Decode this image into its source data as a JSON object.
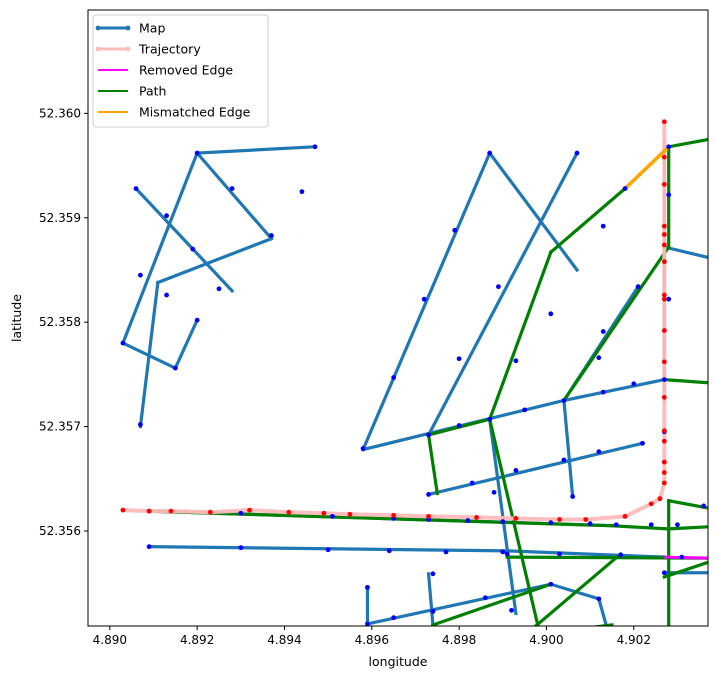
{
  "chart_data": {
    "type": "line",
    "xlabel": "longitude",
    "ylabel": "latitude",
    "xlim": [
      4.8895,
      4.9037
    ],
    "ylim": [
      52.35509,
      52.36099
    ],
    "xticks": [
      "4.890",
      "4.892",
      "4.894",
      "4.896",
      "4.898",
      "4.900",
      "4.902"
    ],
    "xtick_values": [
      4.89,
      4.892,
      4.894,
      4.896,
      4.898,
      4.9,
      4.902
    ],
    "yticks": [
      "52.356",
      "52.357",
      "52.358",
      "52.359",
      "52.360"
    ],
    "ytick_values": [
      52.356,
      52.357,
      52.358,
      52.359,
      52.36
    ],
    "legend_position": "upper left",
    "legend": [
      {
        "label": "Map",
        "color": "#1f77b4",
        "style": "line-marker"
      },
      {
        "label": "Trajectory",
        "color": "#ffbbbb",
        "style": "line-marker"
      },
      {
        "label": "Removed Edge",
        "color": "#ff00ff",
        "style": "line"
      },
      {
        "label": "Path",
        "color": "#008000",
        "style": "line"
      },
      {
        "label": "Mismatched Edge",
        "color": "#ffa500",
        "style": "line"
      }
    ],
    "map_edges": [
      [
        [
          4.892,
          52.35962
        ],
        [
          4.8903,
          52.3578
        ]
      ],
      [
        [
          4.892,
          52.35962
        ],
        [
          4.8947,
          52.35968
        ]
      ],
      [
        [
          4.892,
          52.35962
        ],
        [
          4.8937,
          52.3588
        ]
      ],
      [
        [
          4.8906,
          52.35928
        ],
        [
          4.8928,
          52.3583
        ]
      ],
      [
        [
          4.8907,
          52.357
        ],
        [
          4.8911,
          52.35838
        ]
      ],
      [
        [
          4.8911,
          52.35838
        ],
        [
          4.8937,
          52.3588
        ]
      ],
      [
        [
          4.8903,
          52.3578
        ],
        [
          4.8915,
          52.35756
        ]
      ],
      [
        [
          4.8915,
          52.35756
        ],
        [
          4.892,
          52.35802
        ]
      ],
      [
        [
          4.8958,
          52.35678
        ],
        [
          4.8987,
          52.35962
        ]
      ],
      [
        [
          4.8987,
          52.35962
        ],
        [
          4.9007,
          52.3585
        ]
      ],
      [
        [
          4.8958,
          52.35678
        ],
        [
          4.9004,
          52.35725
        ]
      ],
      [
        [
          4.9004,
          52.35725
        ],
        [
          4.9027,
          52.35745
        ]
      ],
      [
        [
          4.8973,
          52.35692
        ],
        [
          4.9007,
          52.35962
        ]
      ],
      [
        [
          4.8973,
          52.35635
        ],
        [
          4.9022,
          52.35684
        ]
      ],
      [
        [
          4.9004,
          52.35725
        ],
        [
          4.9006,
          52.35633
        ]
      ],
      [
        [
          4.8987,
          52.35707
        ],
        [
          4.8993,
          52.35521
        ]
      ],
      [
        [
          4.9004,
          52.35725
        ],
        [
          4.9021,
          52.35834
        ]
      ],
      [
        [
          4.9027,
          52.35725
        ],
        [
          4.9027,
          52.35972
        ]
      ],
      [
        [
          4.9027,
          52.35872
        ],
        [
          4.9037,
          52.35862
        ]
      ],
      [
        [
          4.8909,
          52.35585
        ],
        [
          4.8991,
          52.35581
        ]
      ],
      [
        [
          4.8991,
          52.35581
        ],
        [
          4.9027,
          52.35575
        ]
      ],
      [
        [
          4.8909,
          52.35619
        ],
        [
          4.9016,
          52.35605
        ]
      ],
      [
        [
          4.8973,
          52.35559
        ],
        [
          4.8974,
          52.3551
        ]
      ],
      [
        [
          4.8959,
          52.35546
        ],
        [
          4.8959,
          52.3551
        ]
      ],
      [
        [
          4.8959,
          52.35511
        ],
        [
          4.9001,
          52.35549
        ]
      ],
      [
        [
          4.9001,
          52.35549
        ],
        [
          4.9012,
          52.35535
        ]
      ],
      [
        [
          4.9012,
          52.35535
        ],
        [
          4.9014,
          52.35505
        ]
      ],
      [
        [
          4.9027,
          52.3556
        ],
        [
          4.9037,
          52.3556
        ]
      ]
    ],
    "map_nodes": [
      [
        4.892,
        52.35962
      ],
      [
        4.8906,
        52.35928
      ],
      [
        4.8913,
        52.35902
      ],
      [
        4.8928,
        52.35928
      ],
      [
        4.8944,
        52.35925
      ],
      [
        4.8947,
        52.35968
      ],
      [
        4.8937,
        52.35883
      ],
      [
        4.8919,
        52.3587
      ],
      [
        4.8907,
        52.35845
      ],
      [
        4.8913,
        52.35826
      ],
      [
        4.8925,
        52.35832
      ],
      [
        4.892,
        52.35802
      ],
      [
        4.8903,
        52.3578
      ],
      [
        4.8915,
        52.35756
      ],
      [
        4.8907,
        52.35702
      ],
      [
        4.8987,
        52.35962
      ],
      [
        4.9007,
        52.35962
      ],
      [
        4.8979,
        52.35888
      ],
      [
        4.8989,
        52.35834
      ],
      [
        4.8972,
        52.35822
      ],
      [
        4.898,
        52.35765
      ],
      [
        4.8965,
        52.35747
      ],
      [
        4.8958,
        52.35679
      ],
      [
        4.8973,
        52.35692
      ],
      [
        4.898,
        52.35701
      ],
      [
        4.8987,
        52.35707
      ],
      [
        4.8995,
        52.35716
      ],
      [
        4.9004,
        52.35725
      ],
      [
        4.9013,
        52.35733
      ],
      [
        4.902,
        52.35741
      ],
      [
        4.9027,
        52.35745
      ],
      [
        4.8993,
        52.35763
      ],
      [
        4.9001,
        52.35808
      ],
      [
        4.9013,
        52.35791
      ],
      [
        4.9021,
        52.35834
      ],
      [
        4.9012,
        52.35766
      ],
      [
        4.9018,
        52.35928
      ],
      [
        4.9013,
        52.35892
      ],
      [
        4.9028,
        52.35922
      ],
      [
        4.9028,
        52.35822
      ],
      [
        4.9027,
        52.35695
      ],
      [
        4.9028,
        52.35968
      ],
      [
        4.8973,
        52.35635
      ],
      [
        4.8983,
        52.35646
      ],
      [
        4.8993,
        52.35658
      ],
      [
        4.9004,
        52.35668
      ],
      [
        4.9012,
        52.35676
      ],
      [
        4.9022,
        52.35684
      ],
      [
        4.9006,
        52.35633
      ],
      [
        4.8988,
        52.35637
      ],
      [
        4.8909,
        52.35619
      ],
      [
        4.893,
        52.35617
      ],
      [
        4.8951,
        52.35614
      ],
      [
        4.8965,
        52.35612
      ],
      [
        4.8973,
        52.35611
      ],
      [
        4.8982,
        52.3561
      ],
      [
        4.899,
        52.35609
      ],
      [
        4.9001,
        52.35608
      ],
      [
        4.901,
        52.35607
      ],
      [
        4.9016,
        52.35606
      ],
      [
        4.9024,
        52.35606
      ],
      [
        4.903,
        52.35606
      ],
      [
        4.9036,
        52.35624
      ],
      [
        4.8909,
        52.35585
      ],
      [
        4.893,
        52.35584
      ],
      [
        4.895,
        52.35582
      ],
      [
        4.8964,
        52.35581
      ],
      [
        4.8977,
        52.3558
      ],
      [
        4.899,
        52.3558
      ],
      [
        4.8991,
        52.35578
      ],
      [
        4.9003,
        52.35578
      ],
      [
        4.9017,
        52.35577
      ],
      [
        4.9031,
        52.35575
      ],
      [
        4.9027,
        52.3556
      ],
      [
        4.8959,
        52.35546
      ],
      [
        4.8959,
        52.35511
      ],
      [
        4.8974,
        52.35559
      ],
      [
        4.8965,
        52.35517
      ],
      [
        4.8974,
        52.35523
      ],
      [
        4.8986,
        52.35536
      ],
      [
        4.9001,
        52.35549
      ],
      [
        4.9012,
        52.35535
      ],
      [
        4.8992,
        52.35524
      ]
    ],
    "trajectory": [
      [
        4.8903,
        52.3562
      ],
      [
        4.8909,
        52.35619
      ],
      [
        4.8914,
        52.35619
      ],
      [
        4.8923,
        52.35618
      ],
      [
        4.8932,
        52.3562
      ],
      [
        4.8941,
        52.35618
      ],
      [
        4.8949,
        52.35617
      ],
      [
        4.8955,
        52.35616
      ],
      [
        4.8965,
        52.35615
      ],
      [
        4.8973,
        52.35614
      ],
      [
        4.8984,
        52.35613
      ],
      [
        4.8993,
        52.35612
      ],
      [
        4.9003,
        52.35611
      ],
      [
        4.9009,
        52.35611
      ],
      [
        4.9018,
        52.35614
      ],
      [
        4.9024,
        52.35626
      ],
      [
        4.9026,
        52.35631
      ],
      [
        4.9027,
        52.35646
      ],
      [
        4.9027,
        52.35656
      ],
      [
        4.9027,
        52.35666
      ],
      [
        4.9027,
        52.35686
      ],
      [
        4.9027,
        52.35696
      ],
      [
        4.9027,
        52.35728
      ],
      [
        4.9027,
        52.35762
      ],
      [
        4.9027,
        52.35792
      ],
      [
        4.9027,
        52.35822
      ],
      [
        4.9027,
        52.35826
      ],
      [
        4.9027,
        52.35858
      ],
      [
        4.9027,
        52.35874
      ],
      [
        4.9027,
        52.35884
      ],
      [
        4.9027,
        52.35892
      ],
      [
        4.9027,
        52.35932
      ],
      [
        4.9027,
        52.35958
      ],
      [
        4.9027,
        52.35992
      ]
    ],
    "removed_edges": [
      [
        [
          4.9027,
          52.35575
        ],
        [
          4.9037,
          52.35574
        ]
      ]
    ],
    "path_edges": [
      [
        [
          4.8909,
          52.35619
        ],
        [
          4.9015,
          52.35605
        ]
      ],
      [
        [
          4.9015,
          52.35605
        ],
        [
          4.9028,
          52.35602
        ]
      ],
      [
        [
          4.9028,
          52.35602
        ],
        [
          4.9037,
          52.35604
        ]
      ],
      [
        [
          4.9028,
          52.35629
        ],
        [
          4.9037,
          52.35622
        ]
      ],
      [
        [
          4.9028,
          52.35629
        ],
        [
          4.9028,
          52.3551
        ]
      ],
      [
        [
          4.8991,
          52.35575
        ],
        [
          4.9037,
          52.35574
        ]
      ],
      [
        [
          4.8973,
          52.35692
        ],
        [
          4.8975,
          52.35636
        ]
      ],
      [
        [
          4.8973,
          52.35692
        ],
        [
          4.8987,
          52.35707
        ]
      ],
      [
        [
          4.8987,
          52.35707
        ],
        [
          4.9001,
          52.35867
        ]
      ],
      [
        [
          4.9001,
          52.35867
        ],
        [
          4.9018,
          52.35928
        ]
      ],
      [
        [
          4.8987,
          52.35707
        ],
        [
          4.8998,
          52.3551
        ]
      ],
      [
        [
          4.8995,
          52.355
        ],
        [
          4.9017,
          52.35578
        ]
      ],
      [
        [
          4.8995,
          52.355
        ],
        [
          4.9015,
          52.3551
        ]
      ],
      [
        [
          4.9004,
          52.35725
        ],
        [
          4.9028,
          52.35872
        ]
      ],
      [
        [
          4.9028,
          52.35872
        ],
        [
          4.9028,
          52.35968
        ]
      ],
      [
        [
          4.9028,
          52.35968
        ],
        [
          4.9037,
          52.35975
        ]
      ],
      [
        [
          4.9027,
          52.35745
        ],
        [
          4.9037,
          52.35742
        ]
      ],
      [
        [
          4.9027,
          52.35556
        ],
        [
          4.9037,
          52.3557
        ]
      ],
      [
        [
          4.8974,
          52.3551
        ],
        [
          4.9001,
          52.35549
        ]
      ]
    ],
    "mismatched_edges": [
      [
        [
          4.9018,
          52.35928
        ],
        [
          4.9028,
          52.35968
        ]
      ]
    ]
  }
}
